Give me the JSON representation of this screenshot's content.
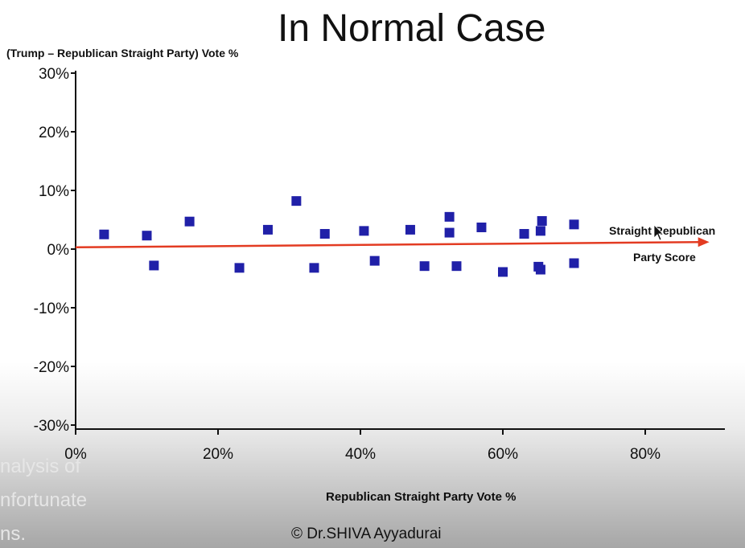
{
  "chart_data": {
    "type": "scatter",
    "title": "In Normal Case",
    "xlabel": "Republican Straight Party Vote %",
    "ylabel": "(Trump – Republican Straight Party) Vote %",
    "xlim": [
      0,
      90
    ],
    "ylim": [
      -30,
      30
    ],
    "x_ticks": [
      "0%",
      "20%",
      "40%",
      "60%",
      "80%"
    ],
    "y_ticks": [
      "30%",
      "20%",
      "10%",
      "0%",
      "-10%",
      "-20%",
      "-30%"
    ],
    "grid": false,
    "points": [
      {
        "x": 4,
        "y": 2.5
      },
      {
        "x": 10,
        "y": 2.3
      },
      {
        "x": 11,
        "y": -2.8
      },
      {
        "x": 16,
        "y": 4.7
      },
      {
        "x": 23,
        "y": -3.2
      },
      {
        "x": 27,
        "y": 3.3
      },
      {
        "x": 31,
        "y": 8.2
      },
      {
        "x": 33.5,
        "y": -3.2
      },
      {
        "x": 35,
        "y": 2.6
      },
      {
        "x": 40.5,
        "y": 3.1
      },
      {
        "x": 42,
        "y": -2.0
      },
      {
        "x": 47,
        "y": 3.3
      },
      {
        "x": 49,
        "y": -2.9
      },
      {
        "x": 52.5,
        "y": 5.5
      },
      {
        "x": 52.5,
        "y": 2.8
      },
      {
        "x": 53.5,
        "y": -2.9
      },
      {
        "x": 57,
        "y": 3.7
      },
      {
        "x": 60,
        "y": -3.9
      },
      {
        "x": 63,
        "y": 2.6
      },
      {
        "x": 65,
        "y": -3.0
      },
      {
        "x": 65.3,
        "y": -3.5
      },
      {
        "x": 65.3,
        "y": 3.1
      },
      {
        "x": 65.5,
        "y": 4.8
      },
      {
        "x": 70,
        "y": 4.2
      },
      {
        "x": 70,
        "y": -2.4
      }
    ],
    "trend_line": {
      "label_line1": "Straight Republican",
      "label_line2": "Party Score",
      "y_start": 0.3,
      "y_end": 1.2
    },
    "colors": {
      "points": "#2020a8",
      "trend": "#e33b22",
      "axes": "#111111"
    }
  },
  "copyright": "© Dr.SHIVA Ayyadurai",
  "caption_lines": [
    "nalysis of",
    "nfortunate",
    "ns."
  ]
}
